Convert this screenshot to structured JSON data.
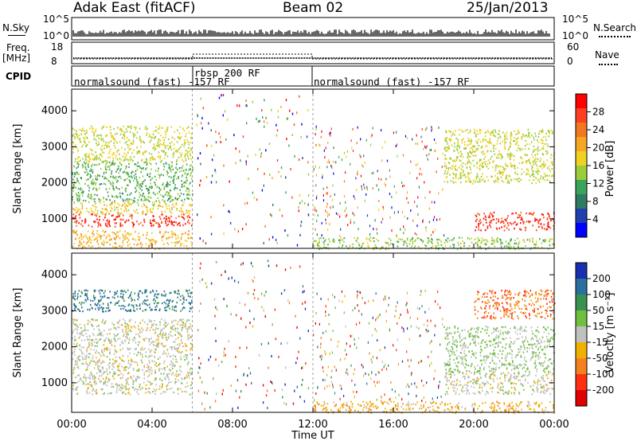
{
  "header": {
    "station": "Adak East (fitACF)",
    "beam": "Beam 02",
    "date": "25/Jan/2013"
  },
  "status_panel": {
    "nsky_label": "N.Sky",
    "nsearch_label": "N.Search",
    "nsky_ticks": [
      "10^5",
      "10^0"
    ],
    "nsky_right_ticks": [
      "10^5",
      "10^0"
    ],
    "freq_label": "Freq.",
    "freq_unit": "[MHz]",
    "freq_ticks": [
      "18",
      "8"
    ],
    "nave_label": "Nave",
    "nave_ticks": [
      "60",
      "0"
    ],
    "cpid_label": "CPID"
  },
  "cpid_modes": [
    {
      "label": "normalsound (fast) -157 RF",
      "start_hour": 0,
      "end_hour": 6
    },
    {
      "label": "rbsp 200 RF",
      "start_hour": 6,
      "end_hour": 12
    },
    {
      "label": "normalsound (fast) -157 RF",
      "start_hour": 12,
      "end_hour": 24
    }
  ],
  "time_axis": {
    "ticks": [
      "00:00",
      "04:00",
      "08:00",
      "12:00",
      "16:00",
      "20:00",
      "00:00"
    ],
    "label": "Time UT"
  },
  "range_axis": {
    "label": "Slant Range [km]",
    "ticks": [
      "1000",
      "2000",
      "3000",
      "4000"
    ]
  },
  "colorbars": {
    "power": {
      "label": "Power [dB]",
      "ticks": [
        "4",
        "8",
        "12",
        "16",
        "20",
        "24",
        "28"
      ],
      "colors": [
        "#0000ff",
        "#2040b0",
        "#2f7a63",
        "#3aa55a",
        "#9ccc3a",
        "#f0d020",
        "#f5a623",
        "#f07820",
        "#ff4020",
        "#ff0000"
      ]
    },
    "velocity": {
      "label": "Velocity [m s⁻¹]",
      "ticks": [
        "200",
        "100",
        "50",
        "15",
        "-15",
        "-50",
        "-100",
        "-200"
      ],
      "colors": [
        "#1a2fb0",
        "#2b6fa0",
        "#3a9050",
        "#70c040",
        "#c0c0c0",
        "#f0b000",
        "#f58020",
        "#ff3010",
        "#e00000"
      ]
    }
  },
  "chart_data": [
    {
      "type": "heatmap",
      "title": "Power",
      "xlabel": "Time UT",
      "ylabel": "Slant Range [km]",
      "xlim": [
        0,
        24
      ],
      "ylim": [
        180,
        4600
      ],
      "colorbar_label": "Power [dB]",
      "colorbar_range": [
        0,
        32
      ],
      "regions": [
        {
          "t0": 0,
          "t1": 6,
          "r0": 800,
          "r1": 1150,
          "value": 28
        },
        {
          "t0": 0,
          "t1": 6,
          "r0": 1150,
          "r1": 1500,
          "value": 18
        },
        {
          "t0": 0,
          "t1": 6,
          "r0": 1500,
          "r1": 2600,
          "value": 12
        },
        {
          "t0": 0,
          "t1": 6,
          "r0": 2600,
          "r1": 3600,
          "value": 16
        },
        {
          "t0": 0,
          "t1": 6,
          "r0": 180,
          "r1": 700,
          "value": 20
        },
        {
          "t0": 12,
          "t1": 24,
          "r0": 180,
          "r1": 500,
          "value": 14
        },
        {
          "t0": 18.5,
          "t1": 24,
          "r0": 2000,
          "r1": 3500,
          "value": 16
        },
        {
          "t0": 20,
          "t1": 24,
          "r0": 700,
          "r1": 1200,
          "value": 28
        }
      ]
    },
    {
      "type": "heatmap",
      "title": "Velocity",
      "xlabel": "Time UT",
      "ylabel": "Slant Range [km]",
      "xlim": [
        0,
        24
      ],
      "ylim": [
        180,
        4600
      ],
      "colorbar_label": "Velocity [m s⁻¹]",
      "colorbar_range": [
        -250,
        250
      ],
      "regions": [
        {
          "t0": 0,
          "t1": 6,
          "r0": 700,
          "r1": 1500,
          "value": 0
        },
        {
          "t0": 0,
          "t1": 6,
          "r0": 1500,
          "r1": 2800,
          "value": 0
        },
        {
          "t0": 0,
          "t1": 6,
          "r0": 3000,
          "r1": 3600,
          "value": 150
        },
        {
          "t0": 12,
          "t1": 24,
          "r0": 180,
          "r1": 500,
          "value": -60
        },
        {
          "t0": 18.5,
          "t1": 24,
          "r0": 700,
          "r1": 1300,
          "value": 0
        },
        {
          "t0": 18.5,
          "t1": 24,
          "r0": 1300,
          "r1": 2600,
          "value": 30
        },
        {
          "t0": 20,
          "t1": 24,
          "r0": 2800,
          "r1": 3600,
          "value": -120
        }
      ]
    }
  ]
}
